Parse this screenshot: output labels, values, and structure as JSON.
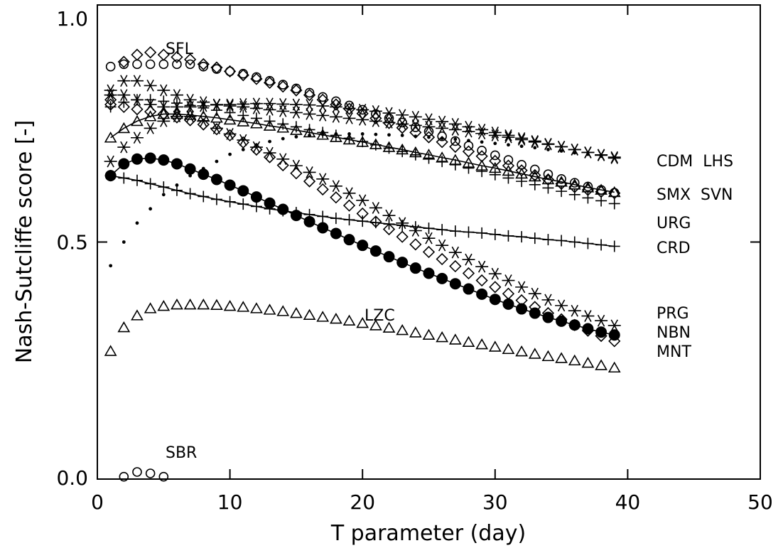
{
  "chart_data": {
    "type": "scatter",
    "xlabel": "T parameter (day)",
    "ylabel": "Nash-Sutcliffe score [-]",
    "xlim": [
      0,
      50
    ],
    "ylim": [
      0.0,
      1.0
    ],
    "xticks": [
      0,
      10,
      20,
      30,
      40,
      50
    ],
    "xtick_labels": [
      "0",
      "10",
      "20",
      "30",
      "40",
      "50"
    ],
    "yticks": [
      0.0,
      0.5,
      1.0
    ],
    "ytick_labels": [
      "0.0",
      "0.5",
      "1.0"
    ],
    "grid": false,
    "x": [
      1,
      2,
      3,
      4,
      5,
      6,
      7,
      8,
      9,
      10,
      11,
      12,
      13,
      14,
      15,
      16,
      17,
      18,
      19,
      20,
      21,
      22,
      23,
      24,
      25,
      26,
      27,
      28,
      29,
      30,
      31,
      32,
      33,
      34,
      35,
      36,
      37,
      38,
      39
    ],
    "series": [
      {
        "name": "SFL",
        "marker": "circle",
        "values": [
          0.87,
          0.875,
          0.875,
          0.875,
          0.875,
          0.875,
          0.875,
          0.87,
          0.865,
          0.86,
          0.855,
          0.848,
          0.84,
          0.832,
          0.824,
          0.815,
          0.806,
          0.797,
          0.788,
          0.779,
          0.77,
          0.761,
          0.752,
          0.742,
          0.733,
          0.723,
          0.713,
          0.703,
          0.693,
          0.683,
          0.673,
          0.663,
          0.653,
          0.643,
          0.633,
          0.625,
          0.617,
          0.61,
          0.604
        ]
      },
      {
        "name": "SFL",
        "marker": "diamond",
        "values": [
          0.8,
          0.88,
          0.895,
          0.9,
          0.895,
          0.89,
          0.885,
          0.875,
          0.868,
          0.86,
          0.852,
          0.844,
          0.836,
          0.828,
          0.82,
          0.81,
          0.8,
          0.79,
          0.781,
          0.771,
          0.761,
          0.751,
          0.741,
          0.731,
          0.721,
          0.711,
          0.701,
          0.691,
          0.681,
          0.671,
          0.661,
          0.651,
          0.641,
          0.632,
          0.623,
          0.616,
          0.61,
          0.606,
          0.603
        ]
      },
      {
        "name": "CDM",
        "marker": "asterisk",
        "values": [
          0.82,
          0.84,
          0.84,
          0.83,
          0.82,
          0.81,
          0.8,
          0.795,
          0.79,
          0.787,
          0.785,
          0.782,
          0.779,
          0.776,
          0.773,
          0.77,
          0.767,
          0.764,
          0.761,
          0.758,
          0.755,
          0.752,
          0.749,
          0.746,
          0.743,
          0.74,
          0.737,
          0.733,
          0.729,
          0.725,
          0.721,
          0.716,
          0.711,
          0.706,
          0.701,
          0.695,
          0.689,
          0.683,
          0.677
        ]
      },
      {
        "name": "LHS",
        "marker": "asterisk",
        "values": [
          0.81,
          0.81,
          0.8,
          0.79,
          0.785,
          0.785,
          0.785,
          0.787,
          0.789,
          0.79,
          0.791,
          0.792,
          0.792,
          0.791,
          0.79,
          0.789,
          0.787,
          0.785,
          0.782,
          0.779,
          0.776,
          0.772,
          0.768,
          0.764,
          0.759,
          0.754,
          0.749,
          0.743,
          0.737,
          0.731,
          0.725,
          0.719,
          0.713,
          0.707,
          0.701,
          0.695,
          0.689,
          0.684,
          0.679
        ]
      },
      {
        "name": "SMX",
        "marker": "plus",
        "values": [
          0.785,
          0.795,
          0.8,
          0.8,
          0.797,
          0.793,
          0.788,
          0.783,
          0.778,
          0.773,
          0.767,
          0.761,
          0.755,
          0.749,
          0.743,
          0.737,
          0.731,
          0.725,
          0.719,
          0.712,
          0.705,
          0.698,
          0.691,
          0.684,
          0.677,
          0.67,
          0.663,
          0.656,
          0.649,
          0.642,
          0.635,
          0.628,
          0.621,
          0.614,
          0.607,
          0.6,
          0.593,
          0.587,
          0.581
        ]
      },
      {
        "name": "SVN",
        "marker": "triangle",
        "values": [
          0.72,
          0.74,
          0.755,
          0.765,
          0.77,
          0.77,
          0.768,
          0.765,
          0.762,
          0.758,
          0.754,
          0.75,
          0.745,
          0.741,
          0.736,
          0.731,
          0.726,
          0.721,
          0.716,
          0.711,
          0.706,
          0.7,
          0.695,
          0.689,
          0.684,
          0.678,
          0.673,
          0.667,
          0.661,
          0.656,
          0.65,
          0.644,
          0.638,
          0.632,
          0.627,
          0.621,
          0.615,
          0.61,
          0.605
        ]
      },
      {
        "name": "URG",
        "marker": "dot",
        "values": [
          0.45,
          0.5,
          0.54,
          0.57,
          0.6,
          0.62,
          0.64,
          0.655,
          0.67,
          0.685,
          0.695,
          0.705,
          0.712,
          0.718,
          0.722,
          0.725,
          0.727,
          0.728,
          0.728,
          0.728,
          0.727,
          0.726,
          0.725,
          0.723,
          0.721,
          0.719,
          0.717,
          0.714,
          0.711,
          0.708,
          0.705,
          0.702,
          0.699,
          0.695,
          0.692,
          0.688,
          0.685,
          0.681,
          0.678
        ]
      },
      {
        "name": "CRD",
        "marker": "plus",
        "values": [
          0.64,
          0.635,
          0.63,
          0.623,
          0.616,
          0.609,
          0.602,
          0.596,
          0.59,
          0.585,
          0.58,
          0.575,
          0.57,
          0.566,
          0.562,
          0.558,
          0.554,
          0.55,
          0.547,
          0.544,
          0.541,
          0.538,
          0.535,
          0.532,
          0.529,
          0.526,
          0.523,
          0.521,
          0.519,
          0.516,
          0.513,
          0.511,
          0.508,
          0.505,
          0.503,
          0.5,
          0.497,
          0.494,
          0.491
        ]
      },
      {
        "name": "PRG",
        "marker": "asterisk",
        "values": [
          0.67,
          0.7,
          0.72,
          0.74,
          0.755,
          0.765,
          0.765,
          0.755,
          0.74,
          0.728,
          0.715,
          0.7,
          0.688,
          0.675,
          0.661,
          0.647,
          0.633,
          0.618,
          0.603,
          0.588,
          0.572,
          0.556,
          0.54,
          0.524,
          0.508,
          0.493,
          0.478,
          0.463,
          0.448,
          0.433,
          0.419,
          0.405,
          0.391,
          0.378,
          0.366,
          0.355,
          0.344,
          0.334,
          0.324
        ]
      },
      {
        "name": "NBN",
        "marker": "filled-circle",
        "values": [
          0.64,
          0.665,
          0.675,
          0.677,
          0.673,
          0.665,
          0.654,
          0.643,
          0.632,
          0.62,
          0.608,
          0.595,
          0.582,
          0.569,
          0.556,
          0.543,
          0.53,
          0.518,
          0.505,
          0.493,
          0.481,
          0.469,
          0.457,
          0.445,
          0.434,
          0.423,
          0.412,
          0.401,
          0.39,
          0.379,
          0.369,
          0.359,
          0.35,
          0.341,
          0.333,
          0.325,
          0.317,
          0.31,
          0.304
        ]
      },
      {
        "name": "MNT",
        "marker": "diamond",
        "values": [
          0.79,
          0.785,
          0.78,
          0.775,
          0.77,
          0.763,
          0.757,
          0.748,
          0.738,
          0.725,
          0.71,
          0.695,
          0.679,
          0.662,
          0.645,
          0.628,
          0.611,
          0.594,
          0.577,
          0.56,
          0.543,
          0.527,
          0.511,
          0.495,
          0.479,
          0.464,
          0.449,
          0.434,
          0.419,
          0.405,
          0.391,
          0.377,
          0.363,
          0.35,
          0.337,
          0.325,
          0.313,
          0.302,
          0.291
        ]
      },
      {
        "name": "LZC",
        "marker": "triangle",
        "values": [
          0.27,
          0.32,
          0.345,
          0.36,
          0.365,
          0.368,
          0.368,
          0.368,
          0.367,
          0.365,
          0.363,
          0.36,
          0.357,
          0.354,
          0.35,
          0.346,
          0.342,
          0.338,
          0.334,
          0.329,
          0.324,
          0.319,
          0.314,
          0.309,
          0.304,
          0.299,
          0.294,
          0.289,
          0.284,
          0.279,
          0.274,
          0.269,
          0.264,
          0.259,
          0.255,
          0.25,
          0.245,
          0.24,
          0.235
        ]
      },
      {
        "name": "SBR",
        "marker": "circle",
        "x": [
          2,
          3,
          4,
          5
        ],
        "values": [
          0.005,
          0.015,
          0.012,
          0.005
        ]
      }
    ],
    "fit_lines": [
      {
        "name": "SVN",
        "values": [
          0.72,
          0.74,
          0.755,
          0.765,
          0.77,
          0.77,
          0.768,
          0.765,
          0.762,
          0.758,
          0.754,
          0.75,
          0.745,
          0.741,
          0.736,
          0.731,
          0.726,
          0.721,
          0.716,
          0.711,
          0.706,
          0.7,
          0.695,
          0.689,
          0.684,
          0.678,
          0.673,
          0.667,
          0.661,
          0.656,
          0.65,
          0.644,
          0.638,
          0.632,
          0.627,
          0.621,
          0.615,
          0.61,
          0.605
        ]
      },
      {
        "name": "CRD",
        "values": [
          0.64,
          0.635,
          0.63,
          0.623,
          0.616,
          0.609,
          0.602,
          0.596,
          0.59,
          0.585,
          0.58,
          0.575,
          0.57,
          0.566,
          0.562,
          0.558,
          0.554,
          0.55,
          0.547,
          0.544,
          0.541,
          0.538,
          0.535,
          0.532,
          0.529,
          0.526,
          0.523,
          0.521,
          0.519,
          0.516,
          0.513,
          0.511,
          0.508,
          0.505,
          0.503,
          0.5,
          0.497,
          0.494,
          0.491
        ]
      },
      {
        "name": "NBN",
        "values": [
          0.64,
          0.665,
          0.675,
          0.677,
          0.673,
          0.665,
          0.654,
          0.643,
          0.632,
          0.62,
          0.608,
          0.595,
          0.582,
          0.569,
          0.556,
          0.543,
          0.53,
          0.518,
          0.505,
          0.493,
          0.481,
          0.469,
          0.457,
          0.445,
          0.434,
          0.423,
          0.412,
          0.401,
          0.39,
          0.379,
          0.369,
          0.359,
          0.35,
          0.341,
          0.333,
          0.325,
          0.317,
          0.31,
          0.304
        ]
      }
    ],
    "annotations": {
      "SFL": "SFL",
      "LZC": "LZC",
      "SBR": "SBR",
      "right_labels": [
        "CDM  LHS",
        "SMX  SVN",
        "URG",
        "CRD",
        "PRG",
        "NBN",
        "MNT"
      ]
    }
  }
}
